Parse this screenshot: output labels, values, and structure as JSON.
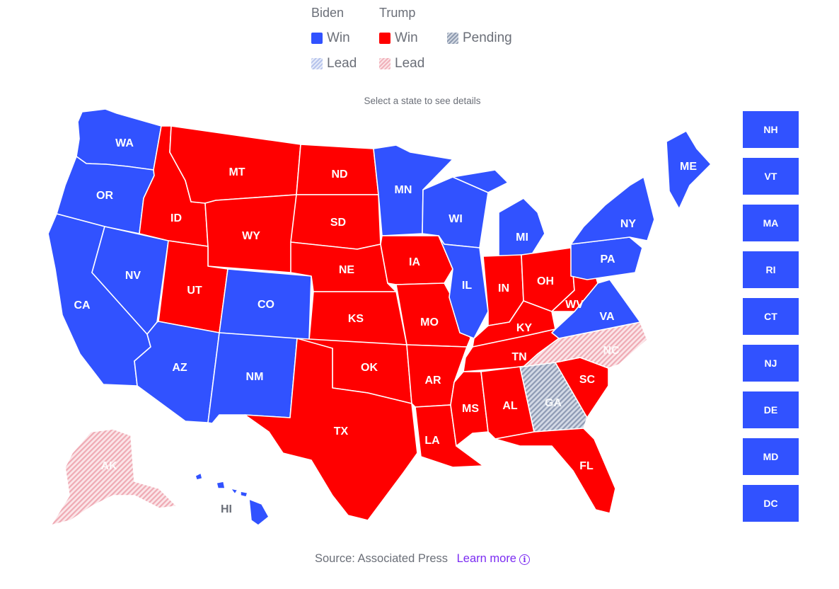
{
  "legend": {
    "biden_header": "Biden",
    "trump_header": "Trump",
    "biden_win": "Win",
    "trump_win": "Win",
    "pending": "Pending",
    "biden_lead": "Lead",
    "trump_lead": "Lead"
  },
  "instruction": "Select a state to see details",
  "colors": {
    "biden_win": "#3152ff",
    "trump_win": "#ff0000",
    "pending": "#b8c0cc",
    "biden_lead": "#c9d3f2",
    "trump_lead": "#f3c3c9"
  },
  "states": [
    {
      "abbr": "WA",
      "status": "biden_win"
    },
    {
      "abbr": "OR",
      "status": "biden_win"
    },
    {
      "abbr": "CA",
      "status": "biden_win"
    },
    {
      "abbr": "NV",
      "status": "biden_win"
    },
    {
      "abbr": "ID",
      "status": "trump_win"
    },
    {
      "abbr": "MT",
      "status": "trump_win"
    },
    {
      "abbr": "WY",
      "status": "trump_win"
    },
    {
      "abbr": "UT",
      "status": "trump_win"
    },
    {
      "abbr": "AZ",
      "status": "biden_win"
    },
    {
      "abbr": "CO",
      "status": "biden_win"
    },
    {
      "abbr": "NM",
      "status": "biden_win"
    },
    {
      "abbr": "ND",
      "status": "trump_win"
    },
    {
      "abbr": "SD",
      "status": "trump_win"
    },
    {
      "abbr": "NE",
      "status": "trump_win"
    },
    {
      "abbr": "KS",
      "status": "trump_win"
    },
    {
      "abbr": "OK",
      "status": "trump_win"
    },
    {
      "abbr": "TX",
      "status": "trump_win"
    },
    {
      "abbr": "MN",
      "status": "biden_win"
    },
    {
      "abbr": "IA",
      "status": "trump_win"
    },
    {
      "abbr": "MO",
      "status": "trump_win"
    },
    {
      "abbr": "AR",
      "status": "trump_win"
    },
    {
      "abbr": "LA",
      "status": "trump_win"
    },
    {
      "abbr": "WI",
      "status": "biden_win"
    },
    {
      "abbr": "IL",
      "status": "biden_win"
    },
    {
      "abbr": "MI",
      "status": "biden_win"
    },
    {
      "abbr": "IN",
      "status": "trump_win"
    },
    {
      "abbr": "OH",
      "status": "trump_win"
    },
    {
      "abbr": "KY",
      "status": "trump_win"
    },
    {
      "abbr": "TN",
      "status": "trump_win"
    },
    {
      "abbr": "MS",
      "status": "trump_win"
    },
    {
      "abbr": "AL",
      "status": "trump_win"
    },
    {
      "abbr": "GA",
      "status": "pending"
    },
    {
      "abbr": "FL",
      "status": "trump_win"
    },
    {
      "abbr": "SC",
      "status": "trump_win"
    },
    {
      "abbr": "NC",
      "status": "trump_lead"
    },
    {
      "abbr": "VA",
      "status": "biden_win"
    },
    {
      "abbr": "WV",
      "status": "trump_win"
    },
    {
      "abbr": "PA",
      "status": "biden_win"
    },
    {
      "abbr": "NY",
      "status": "biden_win"
    },
    {
      "abbr": "ME",
      "status": "biden_win"
    },
    {
      "abbr": "AK",
      "status": "trump_lead"
    },
    {
      "abbr": "HI",
      "status": "biden_win"
    }
  ],
  "small_states": [
    {
      "abbr": "NH",
      "status": "biden_win"
    },
    {
      "abbr": "VT",
      "status": "biden_win"
    },
    {
      "abbr": "MA",
      "status": "biden_win"
    },
    {
      "abbr": "RI",
      "status": "biden_win"
    },
    {
      "abbr": "CT",
      "status": "biden_win"
    },
    {
      "abbr": "NJ",
      "status": "biden_win"
    },
    {
      "abbr": "DE",
      "status": "biden_win"
    },
    {
      "abbr": "MD",
      "status": "biden_win"
    },
    {
      "abbr": "DC",
      "status": "biden_win"
    }
  ],
  "footer": {
    "source": "Source: Associated Press",
    "learn_more": "Learn more",
    "info_icon": "info-icon"
  }
}
